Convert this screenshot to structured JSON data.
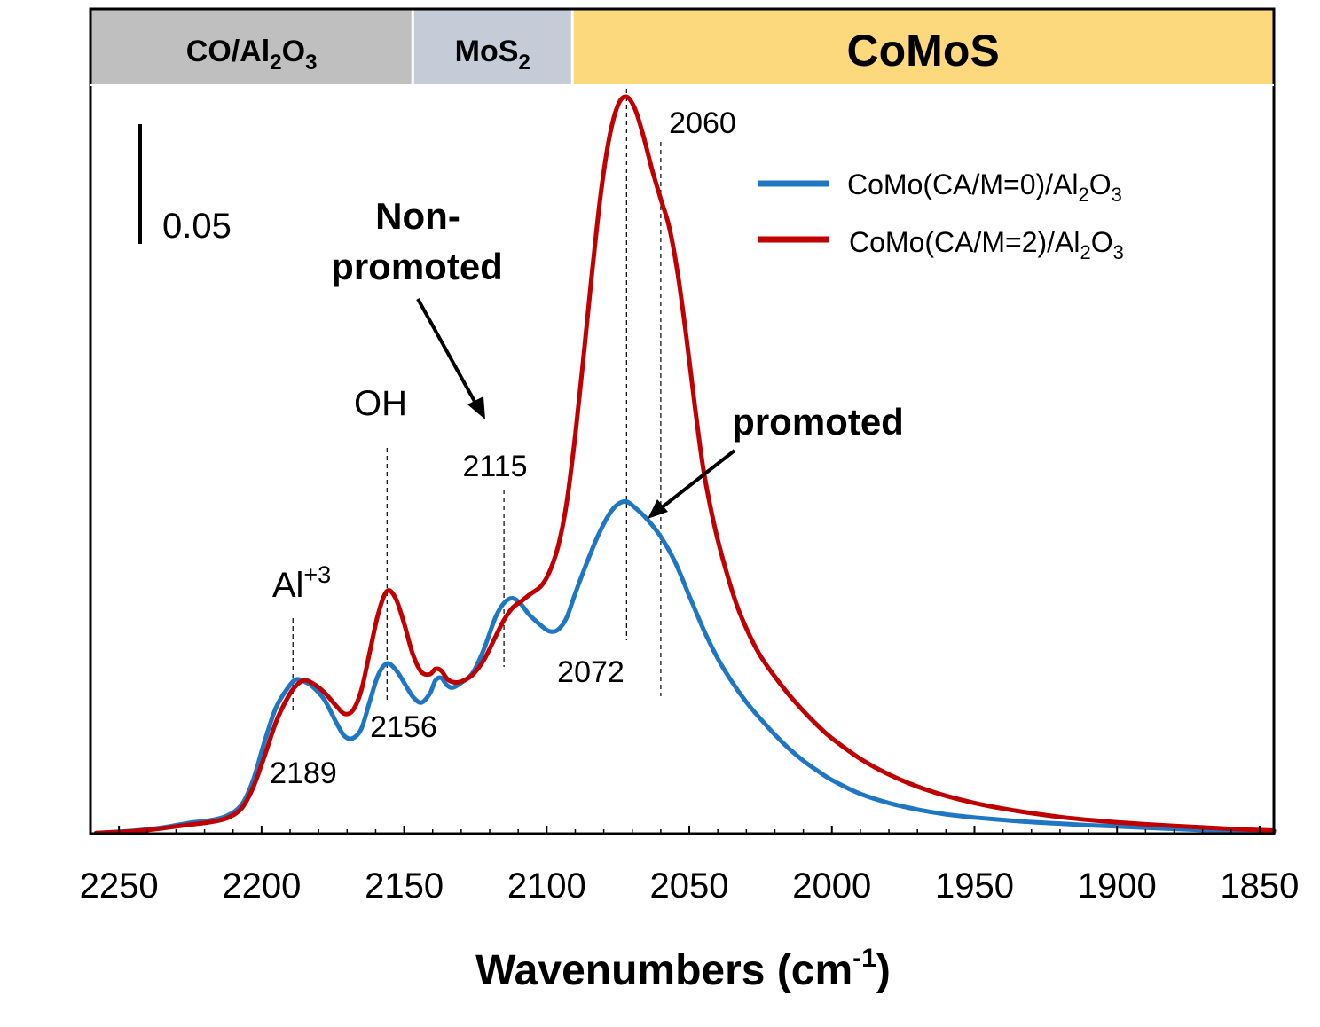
{
  "chart_data": {
    "type": "line",
    "xlabel": "Wavenumbers (cm-1)",
    "xlabel_parts": {
      "main": "Wavenumbers (cm",
      "sup": "-1",
      "close": ")"
    },
    "xlim": [
      2260,
      1845
    ],
    "x_reversed": true,
    "x_ticks": [
      2250,
      2200,
      2150,
      2100,
      2050,
      2000,
      1950,
      1900,
      1850
    ],
    "ylabel": "",
    "ylim": [
      0,
      0.31
    ],
    "y_ticks_visible": false,
    "grid": false,
    "legend": {
      "placement": "top-right",
      "entries": [
        {
          "series": 0,
          "main": "CoMo(CA/M=0)/Al",
          "sub1": "2",
          "mid": "O",
          "sub2": "3"
        },
        {
          "series": 1,
          "main": "CoMo(CA/M=2)/Al",
          "sub1": "2",
          "mid": "O",
          "sub2": "3"
        }
      ]
    },
    "series": [
      {
        "name": "CoMo(CA/M=0)/Al2O3",
        "color": "#1f77c4",
        "points": [
          [
            2258,
            0.0003
          ],
          [
            2245,
            0.0012
          ],
          [
            2235,
            0.0025
          ],
          [
            2225,
            0.0045
          ],
          [
            2218,
            0.0055
          ],
          [
            2212,
            0.0075
          ],
          [
            2207,
            0.012
          ],
          [
            2203,
            0.022
          ],
          [
            2199,
            0.038
          ],
          [
            2195,
            0.052
          ],
          [
            2191,
            0.06
          ],
          [
            2188,
            0.0638
          ],
          [
            2185,
            0.063
          ],
          [
            2182,
            0.0608
          ],
          [
            2178,
            0.0555
          ],
          [
            2174,
            0.0465
          ],
          [
            2171,
            0.0405
          ],
          [
            2168,
            0.0395
          ],
          [
            2165,
            0.0435
          ],
          [
            2162,
            0.055
          ],
          [
            2159,
            0.066
          ],
          [
            2156,
            0.0705
          ],
          [
            2153,
            0.068
          ],
          [
            2150,
            0.0625
          ],
          [
            2147,
            0.0568
          ],
          [
            2144,
            0.0543
          ],
          [
            2141,
            0.058
          ],
          [
            2139,
            0.0635
          ],
          [
            2137,
            0.0645
          ],
          [
            2135,
            0.0615
          ],
          [
            2133,
            0.0605
          ],
          [
            2130,
            0.0625
          ],
          [
            2126,
            0.0665
          ],
          [
            2122,
            0.0765
          ],
          [
            2118,
            0.0895
          ],
          [
            2115,
            0.0955
          ],
          [
            2112,
            0.0975
          ],
          [
            2109,
            0.095
          ],
          [
            2106,
            0.0905
          ],
          [
            2102,
            0.0862
          ],
          [
            2099,
            0.0838
          ],
          [
            2096,
            0.0845
          ],
          [
            2093,
            0.0895
          ],
          [
            2090,
            0.0995
          ],
          [
            2086,
            0.112
          ],
          [
            2082,
            0.1235
          ],
          [
            2078,
            0.1325
          ],
          [
            2075,
            0.1365
          ],
          [
            2072,
            0.1375
          ],
          [
            2069,
            0.135
          ],
          [
            2065,
            0.1305
          ],
          [
            2060,
            0.123
          ],
          [
            2055,
            0.1125
          ],
          [
            2050,
            0.0985
          ],
          [
            2045,
            0.0845
          ],
          [
            2040,
            0.0725
          ],
          [
            2035,
            0.0628
          ],
          [
            2030,
            0.0545
          ],
          [
            2025,
            0.0475
          ],
          [
            2020,
            0.041
          ],
          [
            2015,
            0.0352
          ],
          [
            2010,
            0.0302
          ],
          [
            2005,
            0.026
          ],
          [
            2000,
            0.0222
          ],
          [
            1990,
            0.0165
          ],
          [
            1980,
            0.0127
          ],
          [
            1970,
            0.01
          ],
          [
            1960,
            0.008
          ],
          [
            1950,
            0.0067
          ],
          [
            1940,
            0.0057
          ],
          [
            1930,
            0.0048
          ],
          [
            1920,
            0.0042
          ],
          [
            1910,
            0.0035
          ],
          [
            1900,
            0.003
          ],
          [
            1890,
            0.0025
          ],
          [
            1880,
            0.002
          ],
          [
            1870,
            0.0015
          ],
          [
            1860,
            0.0011
          ],
          [
            1850,
            0.0008
          ],
          [
            1845,
            0.0007
          ]
        ]
      },
      {
        "name": "CoMo(CA/M=2)/Al2O3",
        "color": "#c00000",
        "points": [
          [
            2258,
            0.0003
          ],
          [
            2245,
            0.001
          ],
          [
            2235,
            0.0022
          ],
          [
            2225,
            0.0038
          ],
          [
            2218,
            0.0048
          ],
          [
            2212,
            0.0065
          ],
          [
            2207,
            0.0105
          ],
          [
            2203,
            0.019
          ],
          [
            2199,
            0.032
          ],
          [
            2195,
            0.046
          ],
          [
            2191,
            0.056
          ],
          [
            2188,
            0.0612
          ],
          [
            2185,
            0.0635
          ],
          [
            2182,
            0.0622
          ],
          [
            2178,
            0.0585
          ],
          [
            2174,
            0.0532
          ],
          [
            2171,
            0.0497
          ],
          [
            2168,
            0.051
          ],
          [
            2165,
            0.0595
          ],
          [
            2162,
            0.0755
          ],
          [
            2159,
            0.0915
          ],
          [
            2156,
            0.1005
          ],
          [
            2153,
            0.0975
          ],
          [
            2150,
            0.087
          ],
          [
            2147,
            0.0745
          ],
          [
            2144,
            0.067
          ],
          [
            2141,
            0.066
          ],
          [
            2139,
            0.0682
          ],
          [
            2137,
            0.0675
          ],
          [
            2135,
            0.0642
          ],
          [
            2133,
            0.0628
          ],
          [
            2130,
            0.063
          ],
          [
            2126,
            0.0658
          ],
          [
            2122,
            0.072
          ],
          [
            2118,
            0.0815
          ],
          [
            2115,
            0.0885
          ],
          [
            2112,
            0.0935
          ],
          [
            2109,
            0.0962
          ],
          [
            2106,
            0.099
          ],
          [
            2102,
            0.1025
          ],
          [
            2099,
            0.1085
          ],
          [
            2096,
            0.119
          ],
          [
            2093,
            0.137
          ],
          [
            2090,
            0.165
          ],
          [
            2087,
            0.1985
          ],
          [
            2084,
            0.2335
          ],
          [
            2081,
            0.2655
          ],
          [
            2078,
            0.2885
          ],
          [
            2075,
            0.3018
          ],
          [
            2072,
            0.3052
          ],
          [
            2069,
            0.3
          ],
          [
            2066,
            0.2885
          ],
          [
            2063,
            0.2748
          ],
          [
            2060,
            0.2628
          ],
          [
            2057,
            0.251
          ],
          [
            2054,
            0.2315
          ],
          [
            2051,
            0.2055
          ],
          [
            2048,
            0.1765
          ],
          [
            2045,
            0.1505
          ],
          [
            2041,
            0.1265
          ],
          [
            2037,
            0.1085
          ],
          [
            2033,
            0.0935
          ],
          [
            2029,
            0.0825
          ],
          [
            2025,
            0.0735
          ],
          [
            2020,
            0.065
          ],
          [
            2015,
            0.0575
          ],
          [
            2010,
            0.0508
          ],
          [
            2005,
            0.0448
          ],
          [
            2000,
            0.0395
          ],
          [
            1990,
            0.031
          ],
          [
            1980,
            0.0245
          ],
          [
            1970,
            0.0195
          ],
          [
            1960,
            0.0157
          ],
          [
            1950,
            0.0127
          ],
          [
            1940,
            0.0104
          ],
          [
            1930,
            0.0085
          ],
          [
            1920,
            0.0069
          ],
          [
            1910,
            0.0057
          ],
          [
            1900,
            0.0047
          ],
          [
            1890,
            0.0039
          ],
          [
            1880,
            0.0032
          ],
          [
            1870,
            0.0026
          ],
          [
            1860,
            0.002
          ],
          [
            1850,
            0.0015
          ],
          [
            1845,
            0.0013
          ]
        ]
      }
    ],
    "regions": [
      {
        "from": 2260,
        "to": 2147,
        "main": "CO/Al",
        "sub1": "2",
        "mid": "O",
        "sub2": "3",
        "color": "#bfbfbf"
      },
      {
        "from": 2147,
        "to": 2091,
        "main": "MoS",
        "sub1": "2",
        "mid": "",
        "sub2": "",
        "color": "#c5ccd8"
      },
      {
        "from": 2091,
        "to": 1845,
        "main": "CoMoS",
        "sub1": "",
        "mid": "",
        "sub2": "",
        "color": "#fcd97c"
      }
    ],
    "peaks": [
      {
        "x": 2189,
        "label": "2189"
      },
      {
        "x": 2156,
        "label": "2156"
      },
      {
        "x": 2115,
        "label": "2115"
      },
      {
        "x": 2072,
        "label": "2072"
      },
      {
        "x": 2060,
        "label": "2060"
      }
    ],
    "annotations": {
      "al": {
        "main": "Al",
        "sup": "+3"
      },
      "oh": "OH",
      "non_promoted_1": "Non-",
      "non_promoted_2": "promoted",
      "promoted": "promoted"
    },
    "scale_bar": {
      "value": 0.05,
      "label": "0.05"
    }
  }
}
